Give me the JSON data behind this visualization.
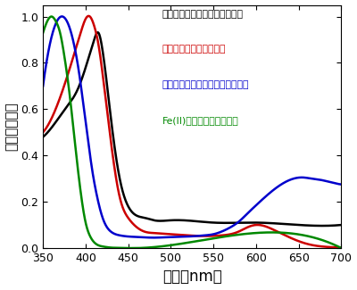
{
  "xlim": [
    350,
    700
  ],
  "ylim": [
    0,
    1.05
  ],
  "xticks": [
    350,
    400,
    450,
    500,
    550,
    600,
    650,
    700
  ],
  "yticks": [
    0,
    0.2,
    0.4,
    0.6,
    0.8,
    1.0
  ],
  "xlabel": "波長（nm）",
  "ylabel": "標準化吸光度",
  "legend_entries": [
    "血液＋アミノアルコールの上清",
    "ヘム＋アミノアルコール",
    "ビリベルジン＋アミノアルコール",
    "Fe(II)＋アミノアルコール"
  ],
  "legend_colors": [
    "#000000",
    "#cc0000",
    "#0000cc",
    "#008800"
  ],
  "background_color": "#ffffff",
  "curve_lw": 1.8,
  "black_curve": {
    "x": [
      350,
      360,
      370,
      380,
      390,
      400,
      410,
      415,
      420,
      430,
      440,
      450,
      460,
      470,
      480,
      500,
      550,
      600,
      650,
      700
    ],
    "y": [
      0.48,
      0.52,
      0.57,
      0.62,
      0.68,
      0.78,
      0.9,
      0.93,
      0.85,
      0.55,
      0.3,
      0.18,
      0.14,
      0.13,
      0.12,
      0.12,
      0.11,
      0.11,
      0.1,
      0.1
    ]
  },
  "red_curve": {
    "x": [
      350,
      360,
      370,
      380,
      390,
      395,
      400,
      405,
      410,
      415,
      420,
      430,
      440,
      450,
      460,
      470,
      480,
      500,
      520,
      540,
      560,
      570,
      580,
      590,
      600,
      610,
      620,
      640,
      660,
      680,
      700
    ],
    "y": [
      0.5,
      0.56,
      0.65,
      0.76,
      0.88,
      0.94,
      0.99,
      1.0,
      0.96,
      0.88,
      0.75,
      0.45,
      0.22,
      0.13,
      0.09,
      0.07,
      0.065,
      0.06,
      0.055,
      0.052,
      0.055,
      0.06,
      0.072,
      0.09,
      0.1,
      0.095,
      0.08,
      0.045,
      0.018,
      0.006,
      0.002
    ]
  },
  "blue_curve": {
    "x": [
      350,
      358,
      363,
      368,
      373,
      378,
      383,
      388,
      393,
      398,
      403,
      408,
      413,
      420,
      430,
      440,
      450,
      460,
      480,
      500,
      520,
      540,
      550,
      560,
      570,
      580,
      590,
      600,
      620,
      640,
      655,
      665,
      675,
      690,
      700
    ],
    "y": [
      0.7,
      0.88,
      0.95,
      0.99,
      1.0,
      0.98,
      0.93,
      0.85,
      0.74,
      0.6,
      0.46,
      0.33,
      0.23,
      0.13,
      0.07,
      0.055,
      0.05,
      0.048,
      0.045,
      0.048,
      0.05,
      0.055,
      0.06,
      0.072,
      0.09,
      0.115,
      0.15,
      0.185,
      0.25,
      0.295,
      0.305,
      0.3,
      0.295,
      0.282,
      0.275
    ]
  },
  "green_curve": {
    "x": [
      350,
      355,
      360,
      365,
      370,
      375,
      380,
      385,
      390,
      395,
      400,
      405,
      410,
      415,
      420,
      425,
      430,
      440,
      450,
      460,
      700
    ],
    "y": [
      0.93,
      0.98,
      1.0,
      0.98,
      0.93,
      0.83,
      0.7,
      0.54,
      0.37,
      0.22,
      0.11,
      0.053,
      0.025,
      0.012,
      0.007,
      0.004,
      0.002,
      0.001,
      0.0,
      0.0,
      0.0
    ]
  }
}
